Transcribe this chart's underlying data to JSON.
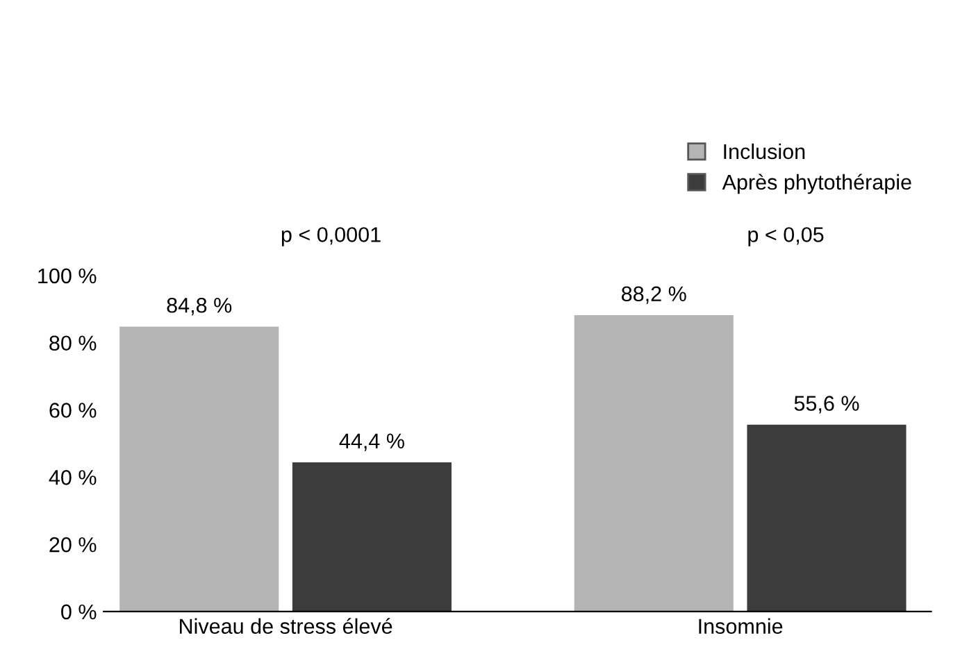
{
  "chart_data": {
    "type": "bar",
    "categories": [
      "Niveau de stress élevé",
      "Insomnie"
    ],
    "series": [
      {
        "name": "Inclusion",
        "color": "#b4b4b4",
        "values": [
          84.8,
          88.2
        ],
        "value_labels": [
          "84,8 %",
          "88,2 %"
        ]
      },
      {
        "name": "Après phytothérapie",
        "color": "#3c3c3c",
        "values": [
          44.4,
          55.6
        ],
        "value_labels": [
          "44,4 %",
          "55,6 %"
        ]
      }
    ],
    "ylim": [
      0,
      100
    ],
    "yticks": [
      {
        "value": 0,
        "label": "0 %"
      },
      {
        "value": 20,
        "label": "20 %"
      },
      {
        "value": 40,
        "label": "40 %"
      },
      {
        "value": 60,
        "label": "60 %"
      },
      {
        "value": 80,
        "label": "80 %"
      },
      {
        "value": 100,
        "label": "100 %"
      }
    ],
    "annotations": [
      "p < 0,0001",
      "p < 0,05"
    ],
    "grid": false,
    "legend": "top right"
  }
}
